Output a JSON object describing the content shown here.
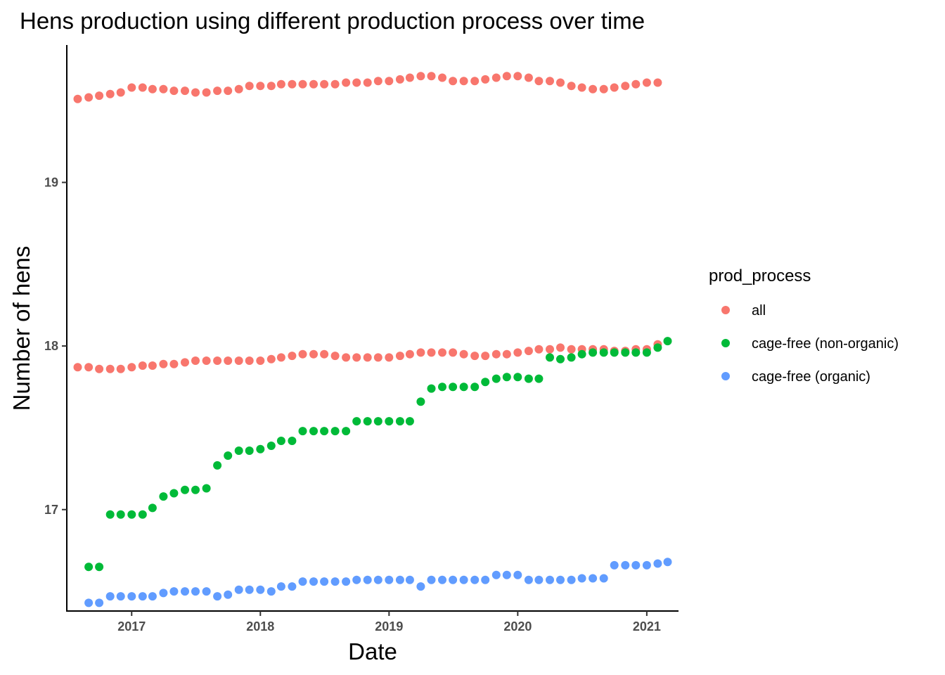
{
  "chart_data": {
    "type": "scatter",
    "title": "Hens production using different production process over time",
    "xlabel": "Date",
    "ylabel": "Number of hens",
    "x_ticks": [
      "2017",
      "2018",
      "2019",
      "2020",
      "2021"
    ],
    "y_ticks": [
      "17",
      "18",
      "19"
    ],
    "xlim": [
      "2016-07-01",
      "2021-04-01"
    ],
    "ylim": [
      16.38,
      19.84
    ],
    "grid": false,
    "legend": {
      "title": "prod_process",
      "placement": "right"
    },
    "series": [
      {
        "name": "all",
        "color": "#F8766D",
        "points": [
          [
            "2016-08-01",
            19.51
          ],
          [
            "2016-09-01",
            19.52
          ],
          [
            "2016-10-01",
            19.53
          ],
          [
            "2016-11-01",
            19.54
          ],
          [
            "2016-12-01",
            19.55
          ],
          [
            "2017-01-01",
            19.58
          ],
          [
            "2017-02-01",
            19.58
          ],
          [
            "2017-03-01",
            19.57
          ],
          [
            "2017-04-01",
            19.57
          ],
          [
            "2017-05-01",
            19.56
          ],
          [
            "2017-06-01",
            19.56
          ],
          [
            "2017-07-01",
            19.55
          ],
          [
            "2017-08-01",
            19.55
          ],
          [
            "2017-09-01",
            19.56
          ],
          [
            "2017-10-01",
            19.56
          ],
          [
            "2017-11-01",
            19.57
          ],
          [
            "2017-12-01",
            19.59
          ],
          [
            "2018-01-01",
            19.59
          ],
          [
            "2018-02-01",
            19.59
          ],
          [
            "2018-03-01",
            19.6
          ],
          [
            "2018-04-01",
            19.6
          ],
          [
            "2018-05-01",
            19.6
          ],
          [
            "2018-06-01",
            19.6
          ],
          [
            "2018-07-01",
            19.6
          ],
          [
            "2018-08-01",
            19.6
          ],
          [
            "2018-09-01",
            19.61
          ],
          [
            "2018-10-01",
            19.61
          ],
          [
            "2018-11-01",
            19.61
          ],
          [
            "2018-12-01",
            19.62
          ],
          [
            "2019-01-01",
            19.62
          ],
          [
            "2019-02-01",
            19.63
          ],
          [
            "2019-03-01",
            19.64
          ],
          [
            "2019-04-01",
            19.65
          ],
          [
            "2019-05-01",
            19.65
          ],
          [
            "2019-06-01",
            19.64
          ],
          [
            "2019-07-01",
            19.62
          ],
          [
            "2019-08-01",
            19.62
          ],
          [
            "2019-09-01",
            19.62
          ],
          [
            "2019-10-01",
            19.63
          ],
          [
            "2019-11-01",
            19.64
          ],
          [
            "2019-12-01",
            19.65
          ],
          [
            "2020-01-01",
            19.65
          ],
          [
            "2020-02-01",
            19.64
          ],
          [
            "2020-03-01",
            19.62
          ],
          [
            "2020-04-01",
            19.62
          ],
          [
            "2020-05-01",
            19.61
          ],
          [
            "2020-06-01",
            19.59
          ],
          [
            "2020-07-01",
            19.58
          ],
          [
            "2020-08-01",
            19.57
          ],
          [
            "2020-09-01",
            19.57
          ],
          [
            "2020-10-01",
            19.58
          ],
          [
            "2020-11-01",
            19.59
          ],
          [
            "2020-12-01",
            19.6
          ],
          [
            "2021-01-01",
            19.61
          ],
          [
            "2021-02-01",
            19.61
          ],
          [
            "2016-08-01",
            17.87
          ],
          [
            "2016-09-01",
            17.87
          ],
          [
            "2016-10-01",
            17.86
          ],
          [
            "2016-11-01",
            17.86
          ],
          [
            "2016-12-01",
            17.86
          ],
          [
            "2017-01-01",
            17.87
          ],
          [
            "2017-02-01",
            17.88
          ],
          [
            "2017-03-01",
            17.88
          ],
          [
            "2017-04-01",
            17.89
          ],
          [
            "2017-05-01",
            17.89
          ],
          [
            "2017-06-01",
            17.9
          ],
          [
            "2017-07-01",
            17.91
          ],
          [
            "2017-08-01",
            17.91
          ],
          [
            "2017-09-01",
            17.91
          ],
          [
            "2017-10-01",
            17.91
          ],
          [
            "2017-11-01",
            17.91
          ],
          [
            "2017-12-01",
            17.91
          ],
          [
            "2018-01-01",
            17.91
          ],
          [
            "2018-02-01",
            17.92
          ],
          [
            "2018-03-01",
            17.93
          ],
          [
            "2018-04-01",
            17.94
          ],
          [
            "2018-05-01",
            17.95
          ],
          [
            "2018-06-01",
            17.95
          ],
          [
            "2018-07-01",
            17.95
          ],
          [
            "2018-08-01",
            17.94
          ],
          [
            "2018-09-01",
            17.93
          ],
          [
            "2018-10-01",
            17.93
          ],
          [
            "2018-11-01",
            17.93
          ],
          [
            "2018-12-01",
            17.93
          ],
          [
            "2019-01-01",
            17.93
          ],
          [
            "2019-02-01",
            17.94
          ],
          [
            "2019-03-01",
            17.95
          ],
          [
            "2019-04-01",
            17.96
          ],
          [
            "2019-05-01",
            17.96
          ],
          [
            "2019-06-01",
            17.96
          ],
          [
            "2019-07-01",
            17.96
          ],
          [
            "2019-08-01",
            17.95
          ],
          [
            "2019-09-01",
            17.94
          ],
          [
            "2019-10-01",
            17.94
          ],
          [
            "2019-11-01",
            17.95
          ],
          [
            "2019-12-01",
            17.95
          ],
          [
            "2020-01-01",
            17.96
          ],
          [
            "2020-02-01",
            17.97
          ],
          [
            "2020-03-01",
            17.98
          ],
          [
            "2020-04-01",
            17.98
          ],
          [
            "2020-05-01",
            17.99
          ],
          [
            "2020-06-01",
            17.98
          ],
          [
            "2020-07-01",
            17.98
          ],
          [
            "2020-08-01",
            17.98
          ],
          [
            "2020-09-01",
            17.98
          ],
          [
            "2020-10-01",
            17.97
          ],
          [
            "2020-11-01",
            17.97
          ],
          [
            "2020-12-01",
            17.98
          ],
          [
            "2021-01-01",
            17.98
          ],
          [
            "2021-02-01",
            18.01
          ]
        ]
      },
      {
        "name": "cage-free (non-organic)",
        "color": "#00BA38",
        "points": [
          [
            "2016-09-01",
            16.65
          ],
          [
            "2016-10-01",
            16.65
          ],
          [
            "2016-11-01",
            16.97
          ],
          [
            "2016-12-01",
            16.97
          ],
          [
            "2017-01-01",
            16.97
          ],
          [
            "2017-02-01",
            16.97
          ],
          [
            "2017-03-01",
            17.01
          ],
          [
            "2017-04-01",
            17.08
          ],
          [
            "2017-05-01",
            17.1
          ],
          [
            "2017-06-01",
            17.12
          ],
          [
            "2017-07-01",
            17.12
          ],
          [
            "2017-08-01",
            17.13
          ],
          [
            "2017-09-01",
            17.27
          ],
          [
            "2017-10-01",
            17.33
          ],
          [
            "2017-11-01",
            17.36
          ],
          [
            "2017-12-01",
            17.36
          ],
          [
            "2018-01-01",
            17.37
          ],
          [
            "2018-02-01",
            17.39
          ],
          [
            "2018-03-01",
            17.42
          ],
          [
            "2018-04-01",
            17.42
          ],
          [
            "2018-05-01",
            17.48
          ],
          [
            "2018-06-01",
            17.48
          ],
          [
            "2018-07-01",
            17.48
          ],
          [
            "2018-08-01",
            17.48
          ],
          [
            "2018-09-01",
            17.48
          ],
          [
            "2018-10-01",
            17.54
          ],
          [
            "2018-11-01",
            17.54
          ],
          [
            "2018-12-01",
            17.54
          ],
          [
            "2019-01-01",
            17.54
          ],
          [
            "2019-02-01",
            17.54
          ],
          [
            "2019-03-01",
            17.54
          ],
          [
            "2019-04-01",
            17.66
          ],
          [
            "2019-05-01",
            17.74
          ],
          [
            "2019-06-01",
            17.75
          ],
          [
            "2019-07-01",
            17.75
          ],
          [
            "2019-08-01",
            17.75
          ],
          [
            "2019-09-01",
            17.75
          ],
          [
            "2019-10-01",
            17.78
          ],
          [
            "2019-11-01",
            17.8
          ],
          [
            "2019-12-01",
            17.81
          ],
          [
            "2020-01-01",
            17.81
          ],
          [
            "2020-02-01",
            17.8
          ],
          [
            "2020-03-01",
            17.8
          ],
          [
            "2020-04-01",
            17.93
          ],
          [
            "2020-05-01",
            17.92
          ],
          [
            "2020-06-01",
            17.93
          ],
          [
            "2020-07-01",
            17.95
          ],
          [
            "2020-08-01",
            17.96
          ],
          [
            "2020-09-01",
            17.96
          ],
          [
            "2020-10-01",
            17.96
          ],
          [
            "2020-11-01",
            17.96
          ],
          [
            "2020-12-01",
            17.96
          ],
          [
            "2021-01-01",
            17.96
          ],
          [
            "2021-02-01",
            17.99
          ],
          [
            "2021-03-01",
            18.03
          ]
        ]
      },
      {
        "name": "cage-free (organic)",
        "color": "#619CFF",
        "points": [
          [
            "2016-09-01",
            16.43
          ],
          [
            "2016-10-01",
            16.43
          ],
          [
            "2016-11-01",
            16.47
          ],
          [
            "2016-12-01",
            16.47
          ],
          [
            "2017-01-01",
            16.47
          ],
          [
            "2017-02-01",
            16.47
          ],
          [
            "2017-03-01",
            16.47
          ],
          [
            "2017-04-01",
            16.49
          ],
          [
            "2017-05-01",
            16.5
          ],
          [
            "2017-06-01",
            16.5
          ],
          [
            "2017-07-01",
            16.5
          ],
          [
            "2017-08-01",
            16.5
          ],
          [
            "2017-09-01",
            16.47
          ],
          [
            "2017-10-01",
            16.48
          ],
          [
            "2017-11-01",
            16.51
          ],
          [
            "2017-12-01",
            16.51
          ],
          [
            "2018-01-01",
            16.51
          ],
          [
            "2018-02-01",
            16.5
          ],
          [
            "2018-03-01",
            16.53
          ],
          [
            "2018-04-01",
            16.53
          ],
          [
            "2018-05-01",
            16.56
          ],
          [
            "2018-06-01",
            16.56
          ],
          [
            "2018-07-01",
            16.56
          ],
          [
            "2018-08-01",
            16.56
          ],
          [
            "2018-09-01",
            16.56
          ],
          [
            "2018-10-01",
            16.57
          ],
          [
            "2018-11-01",
            16.57
          ],
          [
            "2018-12-01",
            16.57
          ],
          [
            "2019-01-01",
            16.57
          ],
          [
            "2019-02-01",
            16.57
          ],
          [
            "2019-03-01",
            16.57
          ],
          [
            "2019-04-01",
            16.53
          ],
          [
            "2019-05-01",
            16.57
          ],
          [
            "2019-06-01",
            16.57
          ],
          [
            "2019-07-01",
            16.57
          ],
          [
            "2019-08-01",
            16.57
          ],
          [
            "2019-09-01",
            16.57
          ],
          [
            "2019-10-01",
            16.57
          ],
          [
            "2019-11-01",
            16.6
          ],
          [
            "2019-12-01",
            16.6
          ],
          [
            "2020-01-01",
            16.6
          ],
          [
            "2020-02-01",
            16.57
          ],
          [
            "2020-03-01",
            16.57
          ],
          [
            "2020-04-01",
            16.57
          ],
          [
            "2020-05-01",
            16.57
          ],
          [
            "2020-06-01",
            16.57
          ],
          [
            "2020-07-01",
            16.58
          ],
          [
            "2020-08-01",
            16.58
          ],
          [
            "2020-09-01",
            16.58
          ],
          [
            "2020-10-01",
            16.66
          ],
          [
            "2020-11-01",
            16.66
          ],
          [
            "2020-12-01",
            16.66
          ],
          [
            "2021-01-01",
            16.66
          ],
          [
            "2021-02-01",
            16.67
          ],
          [
            "2021-03-01",
            16.68
          ]
        ]
      }
    ]
  }
}
